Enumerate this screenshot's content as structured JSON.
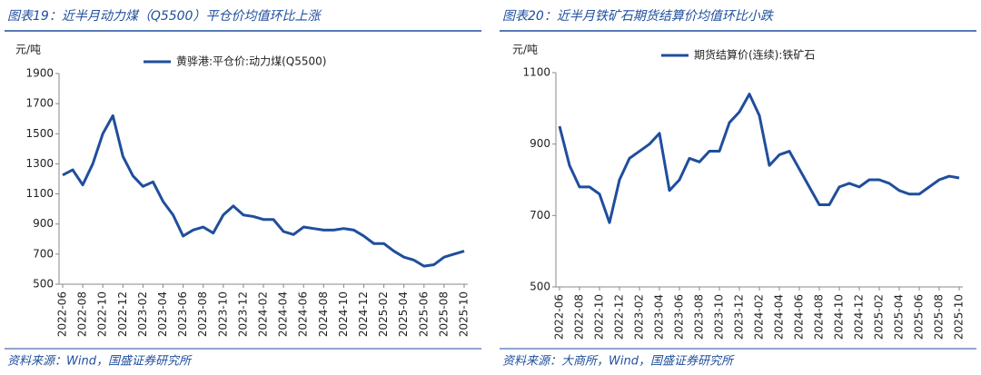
{
  "chart_data": [
    {
      "type": "line",
      "title": "图表19：近半月动力煤（Q5500）平仓价均值环比上涨",
      "source": "资料来源：Wind，国盛证券研究所",
      "ylabel": "元/吨",
      "x": [
        "2022-06",
        "2022-07",
        "2022-08",
        "2022-09",
        "2022-10",
        "2022-11",
        "2022-12",
        "2023-01",
        "2023-02",
        "2023-03",
        "2023-04",
        "2023-05",
        "2023-06",
        "2023-07",
        "2023-08",
        "2023-09",
        "2023-10",
        "2023-11",
        "2023-12",
        "2024-01",
        "2024-02",
        "2024-03",
        "2024-04",
        "2024-05",
        "2024-06",
        "2024-07",
        "2024-08",
        "2024-09",
        "2024-10",
        "2024-11",
        "2024-12",
        "2025-01",
        "2025-02",
        "2025-03",
        "2025-04",
        "2025-05",
        "2025-06",
        "2025-07",
        "2025-08",
        "2025-09",
        "2025-10"
      ],
      "xticks": [
        "2022-06",
        "2022-08",
        "2022-10",
        "2022-12",
        "2023-02",
        "2023-04",
        "2023-06",
        "2023-08",
        "2023-10",
        "2023-12",
        "2024-02",
        "2024-04",
        "2024-06",
        "2024-08",
        "2024-10",
        "2024-12",
        "2025-02",
        "2025-04",
        "2025-06",
        "2025-08",
        "2025-10"
      ],
      "series": [
        {
          "name": "黄骅港:平仓价:动力煤(Q5500)",
          "color": "#1f4e9c",
          "values": [
            1225,
            1260,
            1160,
            1300,
            1500,
            1620,
            1350,
            1220,
            1150,
            1180,
            1050,
            960,
            820,
            860,
            880,
            840,
            960,
            1020,
            960,
            950,
            930,
            930,
            850,
            830,
            880,
            870,
            860,
            860,
            870,
            860,
            820,
            770,
            770,
            720,
            680,
            660,
            620,
            630,
            680,
            700,
            720
          ]
        }
      ],
      "ylim": [
        500,
        1900
      ],
      "yticks": [
        500,
        700,
        900,
        1100,
        1300,
        1500,
        1700,
        1900
      ]
    },
    {
      "type": "line",
      "title": "图表20：近半月铁矿石期货结算价均值环比小跌",
      "source": "资料来源：大商所，Wind，国盛证券研究所",
      "ylabel": "元/吨",
      "x": [
        "2022-06",
        "2022-07",
        "2022-08",
        "2022-09",
        "2022-10",
        "2022-11",
        "2022-12",
        "2023-01",
        "2023-02",
        "2023-03",
        "2023-04",
        "2023-05",
        "2023-06",
        "2023-07",
        "2023-08",
        "2023-09",
        "2023-10",
        "2023-11",
        "2023-12",
        "2024-01",
        "2024-02",
        "2024-03",
        "2024-04",
        "2024-05",
        "2024-06",
        "2024-07",
        "2024-08",
        "2024-09",
        "2024-10",
        "2024-11",
        "2024-12",
        "2025-01",
        "2025-02",
        "2025-03",
        "2025-04",
        "2025-05",
        "2025-06",
        "2025-07",
        "2025-08",
        "2025-09",
        "2025-10"
      ],
      "xticks": [
        "2022-06",
        "2022-08",
        "2022-10",
        "2022-12",
        "2023-02",
        "2023-04",
        "2023-06",
        "2023-08",
        "2023-10",
        "2023-12",
        "2024-02",
        "2024-04",
        "2024-06",
        "2024-08",
        "2024-10",
        "2024-12",
        "2025-02",
        "2025-04",
        "2025-06",
        "2025-08",
        "2025-10"
      ],
      "series": [
        {
          "name": "期货结算价(连续):铁矿石",
          "color": "#1f4e9c",
          "values": [
            950,
            840,
            780,
            780,
            760,
            680,
            800,
            860,
            880,
            900,
            930,
            770,
            800,
            860,
            850,
            880,
            880,
            960,
            990,
            1040,
            980,
            840,
            870,
            880,
            830,
            780,
            730,
            730,
            780,
            790,
            780,
            800,
            800,
            790,
            770,
            760,
            760,
            780,
            800,
            810,
            805
          ]
        }
      ],
      "ylim": [
        500,
        1100
      ],
      "yticks": [
        500,
        700,
        900,
        1100
      ]
    }
  ]
}
